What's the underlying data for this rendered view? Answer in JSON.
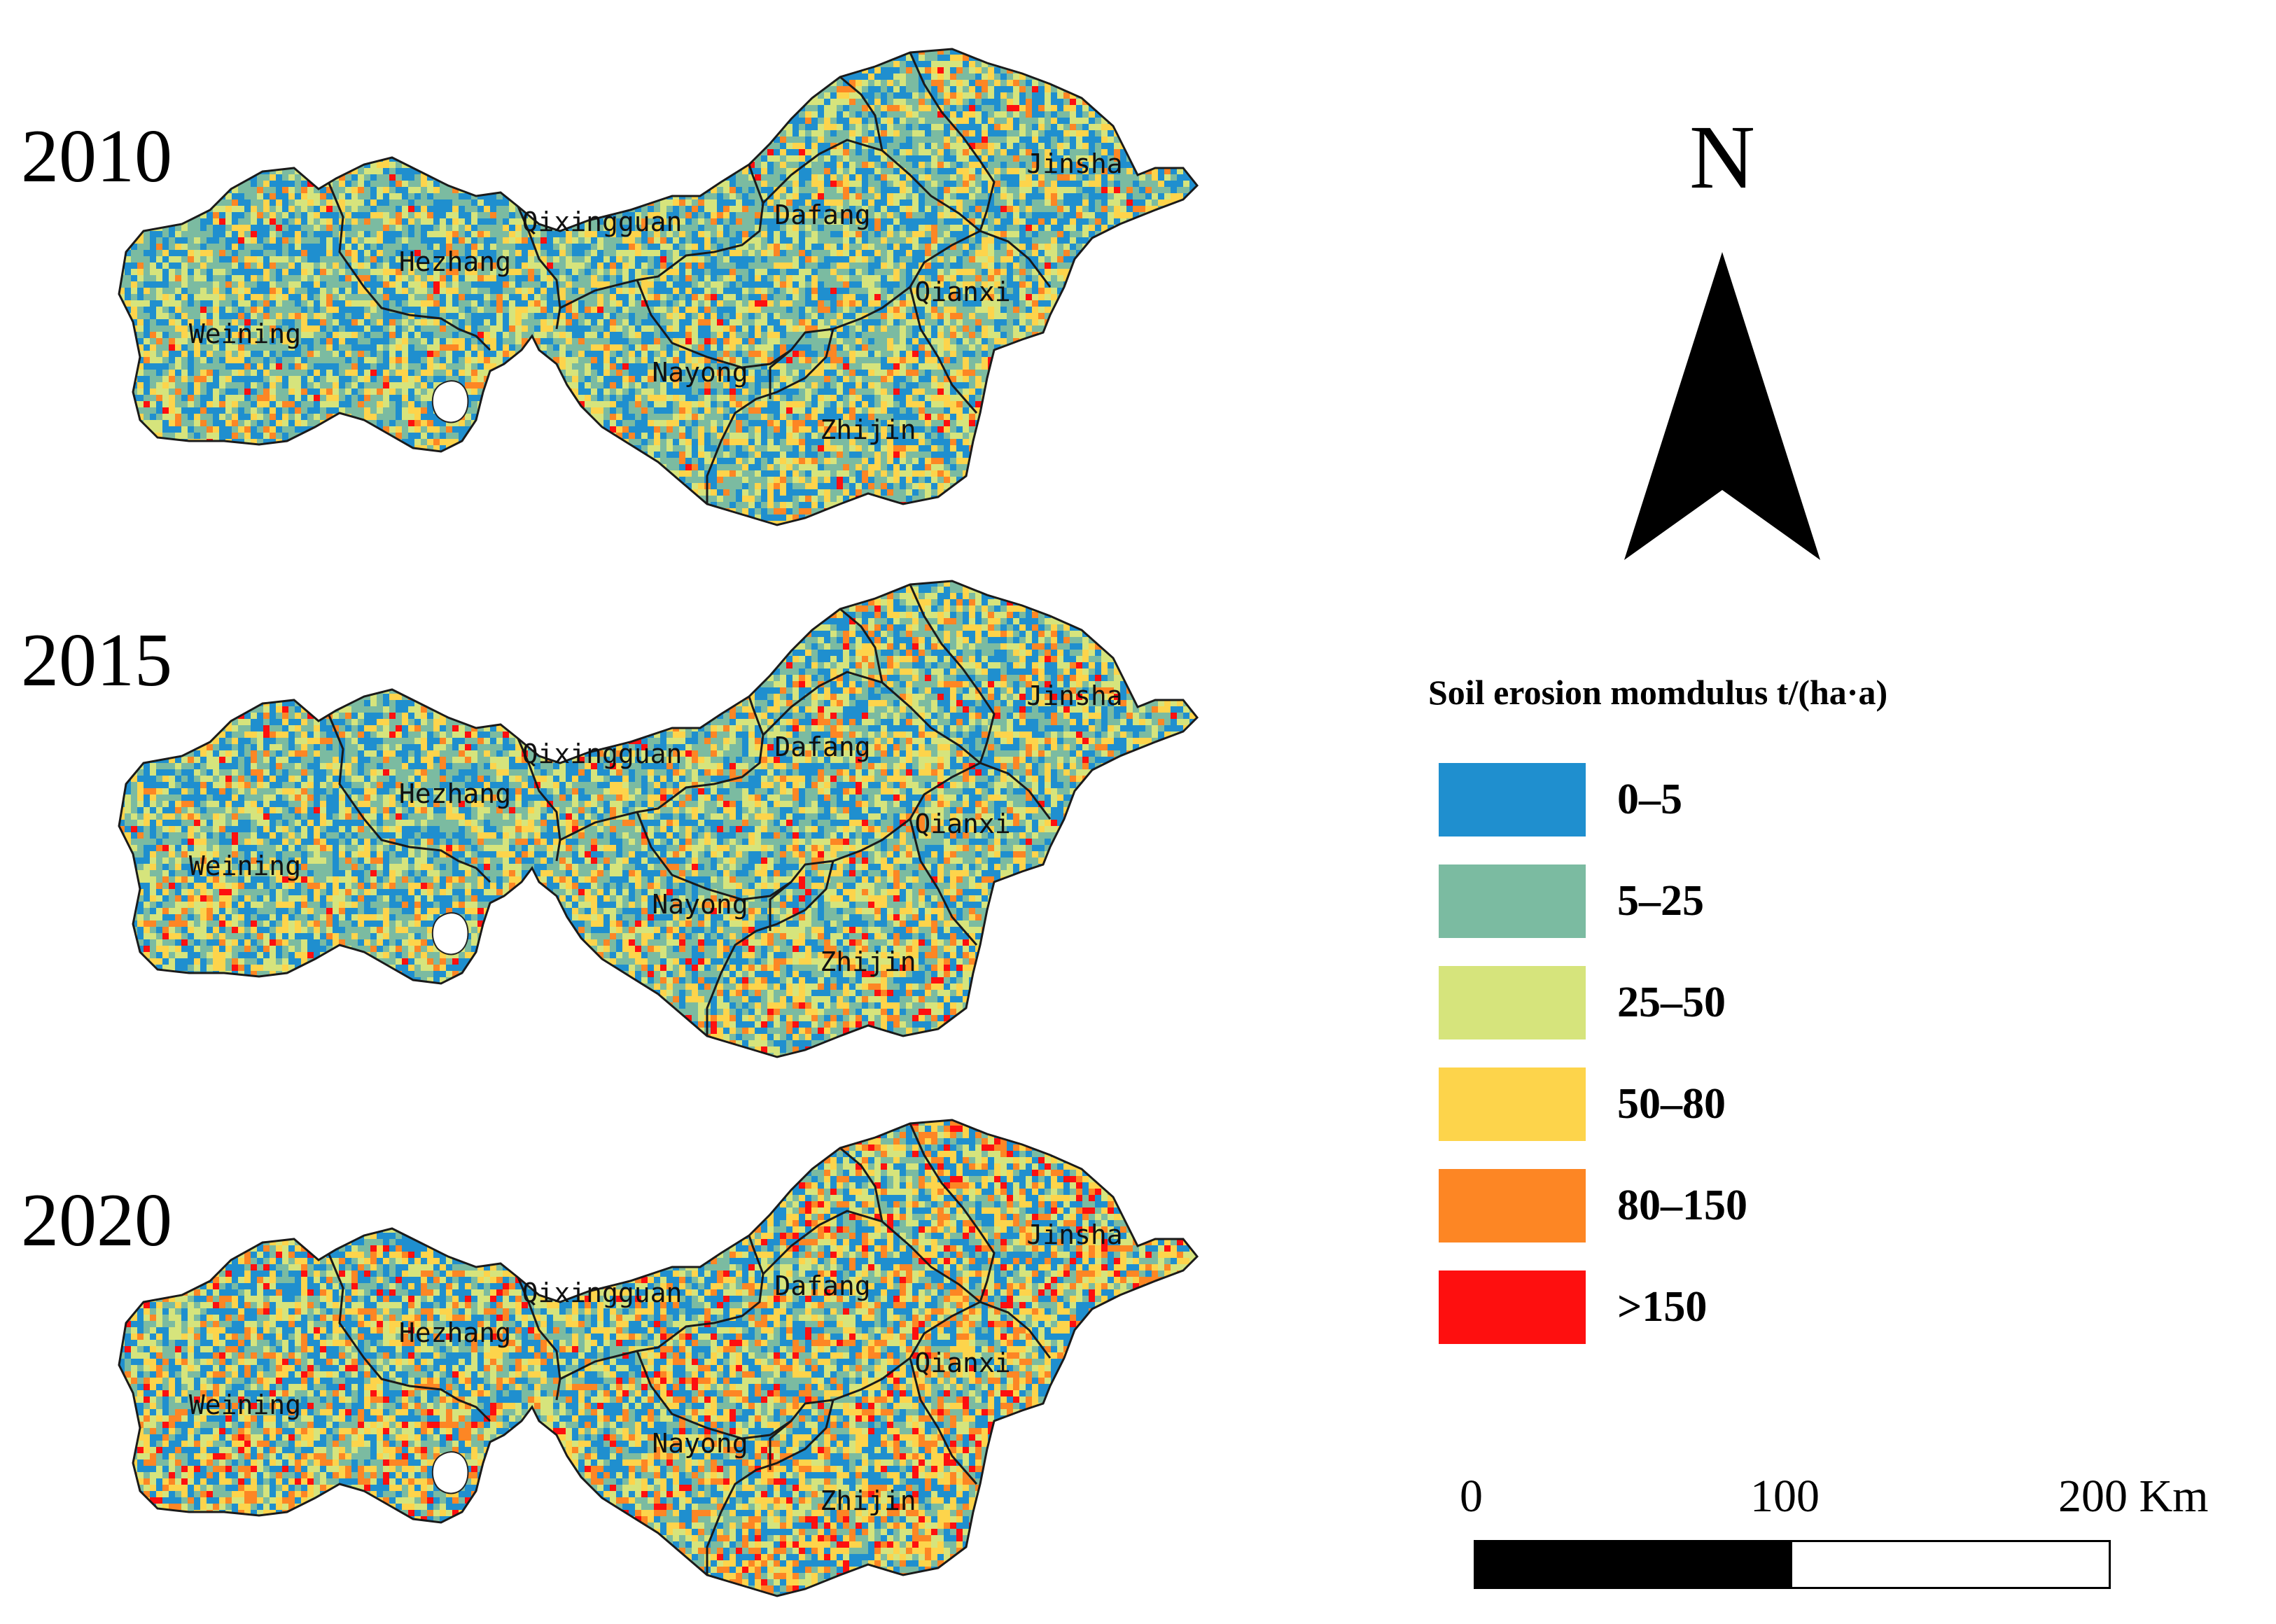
{
  "maps": [
    {
      "year": "2010",
      "counties": [
        "Weining",
        "Hezhang",
        "Qixingguan",
        "Dafang",
        "Jinsha",
        "Qianxi",
        "Nayong",
        "Zhijin"
      ],
      "palette_weights": [
        0.3,
        0.32,
        0.2,
        0.12,
        0.05,
        0.01
      ]
    },
    {
      "year": "2015",
      "counties": [
        "Weining",
        "Hezhang",
        "Qixingguan",
        "Dafang",
        "Jinsha",
        "Qianxi",
        "Nayong",
        "Zhijin"
      ],
      "palette_weights": [
        0.3,
        0.3,
        0.2,
        0.12,
        0.06,
        0.02
      ]
    },
    {
      "year": "2020",
      "counties": [
        "Weining",
        "Hezhang",
        "Qixingguan",
        "Dafang",
        "Jinsha",
        "Qianxi",
        "Nayong",
        "Zhijin"
      ],
      "palette_weights": [
        0.3,
        0.22,
        0.2,
        0.14,
        0.1,
        0.04
      ]
    }
  ],
  "north_arrow": {
    "label": "N",
    "icon": "north-arrow-icon"
  },
  "legend": {
    "title": "Soil erosion momdulus t/(ha·a)",
    "classes": [
      {
        "label": "0–5",
        "color": "#1f8fcf"
      },
      {
        "label": "5–25",
        "color": "#7bbba1"
      },
      {
        "label": "25–50",
        "color": "#d6e47c"
      },
      {
        "label": "50–80",
        "color": "#fdd44b"
      },
      {
        "label": "80–150",
        "color": "#fd8624"
      },
      {
        "label": ">150",
        "color": "#fe0f0f"
      }
    ]
  },
  "scalebar": {
    "ticks": [
      "0",
      "100",
      "200 Km"
    ]
  }
}
